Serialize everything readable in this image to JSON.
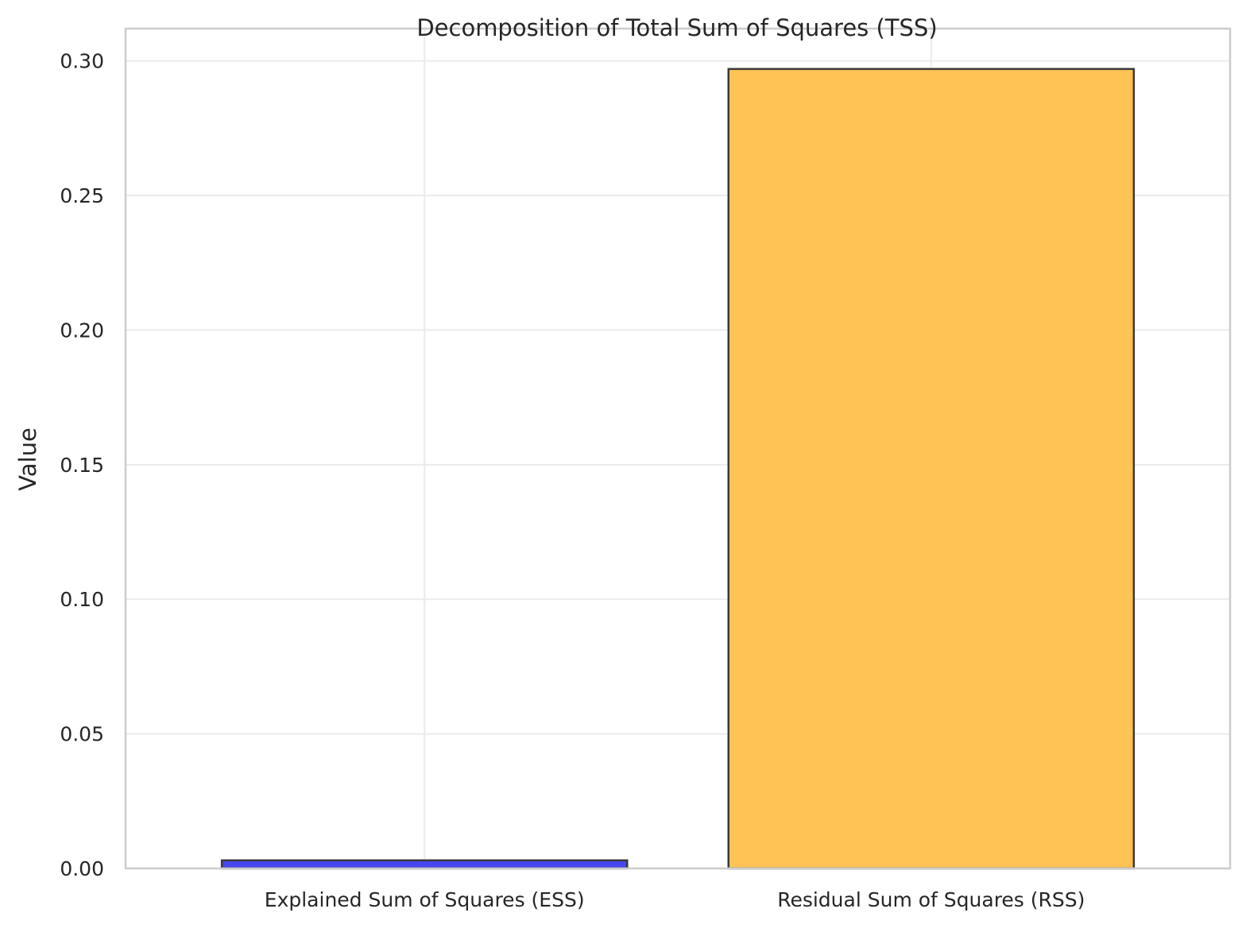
{
  "chart_data": {
    "type": "bar",
    "title": "Decomposition of Total Sum of Squares (TSS)",
    "xlabel": "",
    "ylabel": "Value",
    "categories": [
      "Explained Sum of Squares (ESS)",
      "Residual Sum of Squares (RSS)"
    ],
    "values": [
      0.003,
      0.297
    ],
    "colors": [
      "#4040f0",
      "#ffbf4d"
    ],
    "edge_color": "#3a3a3a",
    "ylim": [
      0,
      0.312
    ],
    "yticks": [
      0.0,
      0.05,
      0.1,
      0.15,
      0.2,
      0.25,
      0.3
    ],
    "ytick_labels": [
      "0.00",
      "0.05",
      "0.10",
      "0.15",
      "0.20",
      "0.25",
      "0.30"
    ],
    "grid": true,
    "legend": "none"
  }
}
